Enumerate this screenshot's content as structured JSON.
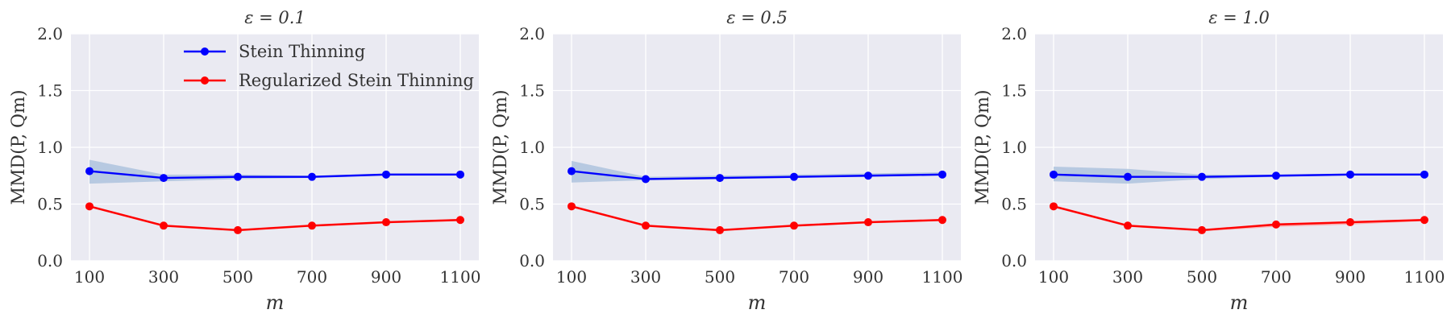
{
  "figure": {
    "background": "#ffffff",
    "plot_background": "#eaeaf2",
    "grid_color": "#ffffff"
  },
  "chart_data": [
    {
      "type": "line",
      "title": "ε = 0.1",
      "xlabel": "m",
      "ylabel": "MMD(P, Qm)",
      "x": [
        100,
        300,
        500,
        700,
        900,
        1100
      ],
      "xlim": [
        50,
        1150
      ],
      "ylim": [
        0.0,
        2.0
      ],
      "xticks": [
        "100",
        "300",
        "500",
        "700",
        "900",
        "1100"
      ],
      "yticks": [
        "0.0",
        "0.5",
        "1.0",
        "1.5",
        "2.0"
      ],
      "grid": true,
      "legend_position": "top-center",
      "series": [
        {
          "name": "Stein Thinning",
          "color": "#0000ff",
          "band_color": "#a6bddb",
          "values": [
            0.79,
            0.73,
            0.74,
            0.74,
            0.76,
            0.76
          ],
          "lower": [
            0.68,
            0.7,
            0.72,
            0.73,
            0.75,
            0.75
          ],
          "upper": [
            0.89,
            0.76,
            0.76,
            0.75,
            0.77,
            0.77
          ]
        },
        {
          "name": "Regularized Stein Thinning",
          "color": "#ff0000",
          "band_color": "#ff9999",
          "values": [
            0.48,
            0.31,
            0.27,
            0.31,
            0.34,
            0.36
          ],
          "lower": [
            0.47,
            0.3,
            0.26,
            0.3,
            0.33,
            0.35
          ],
          "upper": [
            0.49,
            0.32,
            0.28,
            0.32,
            0.35,
            0.37
          ]
        }
      ]
    },
    {
      "type": "line",
      "title": "ε = 0.5",
      "xlabel": "m",
      "ylabel": "MMD(P, Qm)",
      "x": [
        100,
        300,
        500,
        700,
        900,
        1100
      ],
      "xlim": [
        50,
        1150
      ],
      "ylim": [
        0.0,
        2.0
      ],
      "xticks": [
        "100",
        "300",
        "500",
        "700",
        "900",
        "1100"
      ],
      "yticks": [
        "0.0",
        "0.5",
        "1.0",
        "1.5",
        "2.0"
      ],
      "grid": true,
      "series": [
        {
          "name": "Stein Thinning",
          "color": "#0000ff",
          "band_color": "#a6bddb",
          "values": [
            0.79,
            0.72,
            0.73,
            0.74,
            0.75,
            0.76
          ],
          "lower": [
            0.69,
            0.71,
            0.72,
            0.73,
            0.74,
            0.75
          ],
          "upper": [
            0.88,
            0.74,
            0.75,
            0.76,
            0.77,
            0.78
          ]
        },
        {
          "name": "Regularized Stein Thinning",
          "color": "#ff0000",
          "band_color": "#ff9999",
          "values": [
            0.48,
            0.31,
            0.27,
            0.31,
            0.34,
            0.36
          ],
          "lower": [
            0.47,
            0.3,
            0.26,
            0.3,
            0.33,
            0.35
          ],
          "upper": [
            0.49,
            0.32,
            0.28,
            0.32,
            0.35,
            0.37
          ]
        }
      ]
    },
    {
      "type": "line",
      "title": "ε = 1.0",
      "xlabel": "m",
      "ylabel": "MMD(P, Qm)",
      "x": [
        100,
        300,
        500,
        700,
        900,
        1100
      ],
      "xlim": [
        50,
        1150
      ],
      "ylim": [
        0.0,
        2.0
      ],
      "xticks": [
        "100",
        "300",
        "500",
        "700",
        "900",
        "1100"
      ],
      "yticks": [
        "0.0",
        "0.5",
        "1.0",
        "1.5",
        "2.0"
      ],
      "grid": true,
      "series": [
        {
          "name": "Stein Thinning",
          "color": "#0000ff",
          "band_color": "#a6bddb",
          "values": [
            0.76,
            0.74,
            0.74,
            0.75,
            0.76,
            0.76
          ],
          "lower": [
            0.7,
            0.68,
            0.72,
            0.74,
            0.75,
            0.75
          ],
          "upper": [
            0.83,
            0.81,
            0.76,
            0.76,
            0.77,
            0.77
          ]
        },
        {
          "name": "Regularized Stein Thinning",
          "color": "#ff0000",
          "band_color": "#ff9999",
          "values": [
            0.48,
            0.31,
            0.27,
            0.32,
            0.34,
            0.36
          ],
          "lower": [
            0.47,
            0.3,
            0.26,
            0.3,
            0.32,
            0.35
          ],
          "upper": [
            0.49,
            0.32,
            0.28,
            0.33,
            0.35,
            0.37
          ]
        }
      ]
    }
  ]
}
